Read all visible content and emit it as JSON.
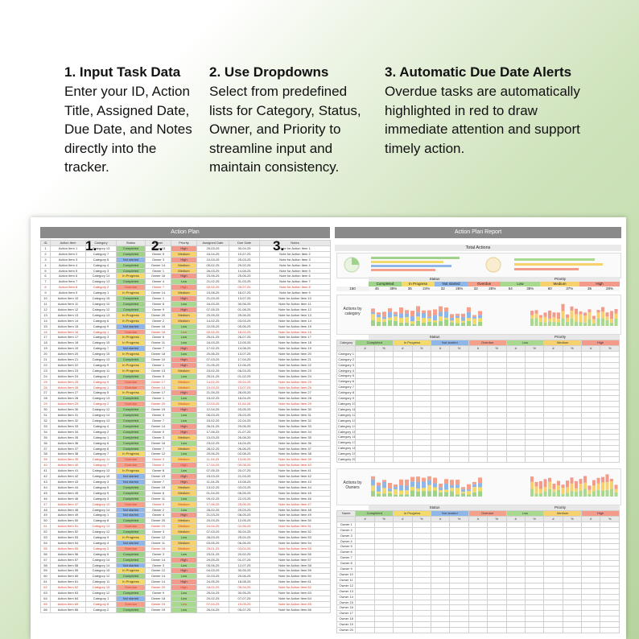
{
  "steps": [
    {
      "title": "1. Input Task Data",
      "body": "Enter your ID, Action Title, Assigned Date, Due Date, and Notes directly into the tracker."
    },
    {
      "title": "2. Use Dropdowns",
      "body": "Select from predefined lists for Category, Status, Owner, and Priority to streamline input and maintain consistency."
    },
    {
      "title": "3. Automatic Due Date Alerts",
      "body": "Overdue tasks are automatically highlighted in red to draw immediate attention and support timely action."
    }
  ],
  "markers": [
    "1.",
    "2.",
    "3."
  ],
  "action_plan": {
    "title": "Action Plan",
    "columns": [
      "ID",
      "Action Item",
      "Category",
      "Status",
      "Owner",
      "Priority",
      "Assigned Date",
      "Due Date",
      "Notes"
    ],
    "rows": [
      [
        "1",
        "Action Item 1",
        "Category 13",
        "Completed",
        "Owner 15",
        "High",
        "25-03-25",
        "30-04-25",
        "Note for Action Item 1"
      ],
      [
        "2",
        "Action Item 2",
        "Category 7",
        "Completed",
        "Owner 5",
        "Medium",
        "16-04-25",
        "10-07-25",
        "Note for Action Item 2"
      ],
      [
        "3",
        "Action Item 3",
        "Category 5",
        "Not started",
        "Owner 3",
        "High",
        "10-03-25",
        "25-03-25",
        "Note for Action Item 3"
      ],
      [
        "4",
        "Action Item 4",
        "Category 4",
        "Completed",
        "Owner 14",
        "Medium",
        "05-02-25",
        "29-02-25",
        "Note for Action Item 4"
      ],
      [
        "5",
        "Action Item 5",
        "Category 3",
        "Completed",
        "Owner 1",
        "Medium",
        "26-03-25",
        "14-08-25",
        "Note for Action Item 5"
      ],
      [
        "6",
        "Action Item 6",
        "Category 14",
        "In Progress",
        "Owner 16",
        "High",
        "15-06-25",
        "25-06-25",
        "Note for Action Item 6"
      ],
      [
        "7",
        "Action Item 7",
        "Category 13",
        "Completed",
        "Owner 4",
        "Low",
        "21-02-25",
        "31-03-25",
        "Note for Action Item 7"
      ],
      [
        "8",
        "Action Item 8",
        "Category 2",
        "Overdue",
        "Owner 7",
        "High",
        "02-02-25",
        "09-07-25",
        "Note for Action Item 8"
      ],
      [
        "9",
        "Action Item 9",
        "Category 1",
        "In Progress",
        "Owner 14",
        "Medium",
        "19-08-25",
        "16-07-25",
        "Note for Action Item 9"
      ],
      [
        "10",
        "Action Item 10",
        "Category 15",
        "Completed",
        "Owner 1",
        "High",
        "21-03-25",
        "13-07-25",
        "Note for Action Item 10"
      ],
      [
        "11",
        "Action Item 11",
        "Category 10",
        "Completed",
        "Owner 8",
        "Low",
        "16-03-25",
        "30-06-25",
        "Note for Action Item 11"
      ],
      [
        "12",
        "Action Item 12",
        "Category 12",
        "Completed",
        "Owner 9",
        "High",
        "07-05-25",
        "01-08-25",
        "Note for Action Item 12"
      ],
      [
        "13",
        "Action Item 13",
        "Category 13",
        "In Progress",
        "Owner 20",
        "Medium",
        "20-05-25",
        "25-06-25",
        "Note for Action Item 13"
      ],
      [
        "14",
        "Action Item 14",
        "Category 6",
        "In Progress",
        "Owner 2",
        "Medium",
        "14-02-25",
        "03-03-25",
        "Note for Action Item 14"
      ],
      [
        "15",
        "Action Item 15",
        "Category 9",
        "Not started",
        "Owner 16",
        "Low",
        "22-05-25",
        "05-06-25",
        "Note for Action Item 15"
      ],
      [
        "16",
        "Action Item 16",
        "Category 1",
        "Overdue",
        "Owner 18",
        "Low",
        "02-02-25",
        "18-02-25",
        "Note for Action Item 16"
      ],
      [
        "17",
        "Action Item 17",
        "Category 3",
        "In Progress",
        "Owner 6",
        "Low",
        "25-01-25",
        "26-07-25",
        "Note for Action Item 17"
      ],
      [
        "18",
        "Action Item 18",
        "Category 15",
        "In Progress",
        "Owner 11",
        "Low",
        "16-03-25",
        "12-05-25",
        "Note for Action Item 18"
      ],
      [
        "19",
        "Action Item 19",
        "Category 7",
        "Not started",
        "Owner 7",
        "High",
        "17-02-25",
        "14-08-25",
        "Note for Action Item 19"
      ],
      [
        "20",
        "Action Item 20",
        "Category 15",
        "In Progress",
        "Owner 18",
        "Low",
        "20-06-25",
        "13-07-25",
        "Note for Action Item 20"
      ],
      [
        "21",
        "Action Item 21",
        "Category 13",
        "Completed",
        "Owner 10",
        "High",
        "07-03-25",
        "17-04-25",
        "Note for Action Item 21"
      ],
      [
        "22",
        "Action Item 22",
        "Category 9",
        "In Progress",
        "Owner 1",
        "High",
        "21-05-25",
        "12-06-25",
        "Note for Action Item 22"
      ],
      [
        "23",
        "Action Item 23",
        "Category 11",
        "In Progress",
        "Owner 13",
        "Medium",
        "23-02-25",
        "06-03-25",
        "Note for Action Item 23"
      ],
      [
        "24",
        "Action Item 24",
        "Category 2",
        "Completed",
        "Owner 5",
        "Low",
        "25-01-25",
        "01-02-25",
        "Note for Action Item 24"
      ],
      [
        "25",
        "Action Item 25",
        "Category 9",
        "Overdue",
        "Owner 17",
        "Medium",
        "14-02-25",
        "20-04-25",
        "Note for Action Item 25"
      ],
      [
        "26",
        "Action Item 26",
        "Category 1",
        "Overdue",
        "Owner 14",
        "Medium",
        "10-03-25",
        "13-07-25",
        "Note for Action Item 26"
      ],
      [
        "27",
        "Action Item 27",
        "Category 5",
        "In Progress",
        "Owner 17",
        "High",
        "21-05-25",
        "26-05-25",
        "Note for Action Item 27"
      ],
      [
        "28",
        "Action Item 28",
        "Category 13",
        "Completed",
        "Owner 1",
        "Low",
        "15-02-25",
        "16-04-25",
        "Note for Action Item 28"
      ],
      [
        "29",
        "Action Item 29",
        "Category 2",
        "Overdue",
        "Owner 20",
        "Medium",
        "12-03-25",
        "11-04-25",
        "Note for Action Item 29"
      ],
      [
        "30",
        "Action Item 30",
        "Category 12",
        "Completed",
        "Owner 15",
        "High",
        "12-04-25",
        "20-05-25",
        "Note for Action Item 30"
      ],
      [
        "31",
        "Action Item 31",
        "Category 14",
        "Completed",
        "Owner 3",
        "Low",
        "06-03-25",
        "25-03-25",
        "Note for Action Item 31"
      ],
      [
        "32",
        "Action Item 32",
        "Category 13",
        "Completed",
        "Owner 7",
        "Low",
        "15-02-25",
        "22-04-25",
        "Note for Action Item 32"
      ],
      [
        "33",
        "Action Item 33",
        "Category 4",
        "Completed",
        "Owner 14",
        "High",
        "26-01-25",
        "29-06-25",
        "Note for Action Item 33"
      ],
      [
        "34",
        "Action Item 34",
        "Category 2",
        "Completed",
        "Owner 0",
        "High",
        "17-06-25",
        "21-07-25",
        "Note for Action Item 34"
      ],
      [
        "35",
        "Action Item 35",
        "Category 1",
        "Completed",
        "Owner 3",
        "Medium",
        "13-03-25",
        "26-08-25",
        "Note for Action Item 35"
      ],
      [
        "36",
        "Action Item 36",
        "Category 6",
        "Completed",
        "Owner 16",
        "Low",
        "23-02-25",
        "16-04-25",
        "Note for Action Item 36"
      ],
      [
        "37",
        "Action Item 37",
        "Category 8",
        "Completed",
        "Owner 7",
        "Medium",
        "28-02-25",
        "06-06-25",
        "Note for Action Item 37"
      ],
      [
        "38",
        "Action Item 38",
        "Category 7",
        "In Progress",
        "Owner 12",
        "Low",
        "20-06-25",
        "02-08-25",
        "Note for Action Item 38"
      ],
      [
        "39",
        "Action Item 39",
        "Category 11",
        "Overdue",
        "Owner 3",
        "Medium",
        "11-04-25",
        "13-06-25",
        "Note for Action Item 39"
      ],
      [
        "40",
        "Action Item 40",
        "Category 7",
        "Overdue",
        "Owner 2",
        "High",
        "17-04-25",
        "09-08-25",
        "Note for Action Item 40"
      ],
      [
        "41",
        "Action Item 41",
        "Category 13",
        "In Progress",
        "Owner 8",
        "Low",
        "07-05-25",
        "20-07-25",
        "Note for Action Item 41"
      ],
      [
        "42",
        "Action Item 42",
        "Category 15",
        "Not started",
        "Owner 19",
        "High",
        "15-03-25",
        "21-03-25",
        "Note for Action Item 42"
      ],
      [
        "43",
        "Action Item 43",
        "Category 3",
        "Not started",
        "Owner 7",
        "High",
        "11-04-25",
        "10-08-25",
        "Note for Action Item 43"
      ],
      [
        "44",
        "Action Item 44",
        "Category 5",
        "Completed",
        "Owner 19",
        "Medium",
        "13-02-25",
        "03-03-25",
        "Note for Action Item 44"
      ],
      [
        "45",
        "Action Item 45",
        "Category 9",
        "Completed",
        "Owner 8",
        "Medium",
        "01-04-25",
        "06-05-25",
        "Note for Action Item 45"
      ],
      [
        "46",
        "Action Item 46",
        "Category 3",
        "Completed",
        "Owner 11",
        "Low",
        "09-02-25",
        "22-03-25",
        "Note for Action Item 46"
      ],
      [
        "47",
        "Action Item 47",
        "Category 10",
        "Overdue",
        "Owner 9",
        "Medium",
        "17-06-25",
        "25-06-25",
        "Note for Action Item 47"
      ],
      [
        "48",
        "Action Item 48",
        "Category 14",
        "Not started",
        "Owner 2",
        "Low",
        "28-02-25",
        "29-03-25",
        "Note for Action Item 48"
      ],
      [
        "49",
        "Action Item 49",
        "Category 1",
        "Not started",
        "Owner 4",
        "High",
        "21-03-25",
        "08-05-25",
        "Note for Action Item 49"
      ],
      [
        "50",
        "Action Item 50",
        "Category 8",
        "Completed",
        "Owner 20",
        "Medium",
        "20-03-25",
        "12-05-25",
        "Note for Action Item 50"
      ],
      [
        "51",
        "Action Item 51",
        "Category 13",
        "Overdue",
        "Owner 10",
        "Medium",
        "24-04-25",
        "02-06-25",
        "Note for Action Item 51"
      ],
      [
        "52",
        "Action Item 52",
        "Category 12",
        "Completed",
        "Owner 3",
        "Medium",
        "07-03-25",
        "30-04-25",
        "Note for Action Item 52"
      ],
      [
        "53",
        "Action Item 53",
        "Category 9",
        "In Progress",
        "Owner 12",
        "Low",
        "28-03-25",
        "25-04-25",
        "Note for Action Item 53"
      ],
      [
        "54",
        "Action Item 54",
        "Category 4",
        "Not started",
        "Owner 11",
        "Medium",
        "03-05-25",
        "06-06-25",
        "Note for Action Item 54"
      ],
      [
        "55",
        "Action Item 55",
        "Category 3",
        "Overdue",
        "Owner 16",
        "Medium",
        "25-01-25",
        "03-04-25",
        "Note for Action Item 55"
      ],
      [
        "56",
        "Action Item 56",
        "Category 5",
        "Completed",
        "Owner 3",
        "Low",
        "23-01-25",
        "20-02-25",
        "Note for Action Item 56"
      ],
      [
        "57",
        "Action Item 57",
        "Category 14",
        "Completed",
        "Owner 14",
        "High",
        "29-05-25",
        "01-07-25",
        "Note for Action Item 57"
      ],
      [
        "58",
        "Action Item 58",
        "Category 14",
        "Not started",
        "Owner 3",
        "Low",
        "05-06-25",
        "12-07-25",
        "Note for Action Item 58"
      ],
      [
        "59",
        "Action Item 59",
        "Category 15",
        "In Progress",
        "Owner 12",
        "High",
        "04-03-25",
        "30-05-25",
        "Note for Action Item 59"
      ],
      [
        "60",
        "Action Item 60",
        "Category 12",
        "Completed",
        "Owner 14",
        "Low",
        "22-03-25",
        "20-06-25",
        "Note for Action Item 60"
      ],
      [
        "61",
        "Action Item 61",
        "Category 11",
        "In Progress",
        "Owner 14",
        "High",
        "24-05-25",
        "18-08-25",
        "Note for Action Item 61"
      ],
      [
        "62",
        "Action Item 62",
        "Category 15",
        "Overdue",
        "Owner 20",
        "High",
        "18-02-25",
        "05-04-25",
        "Note for Action Item 62"
      ],
      [
        "63",
        "Action Item 63",
        "Category 12",
        "Completed",
        "Owner 9",
        "Low",
        "25-04-25",
        "30-05-25",
        "Note for Action Item 63"
      ],
      [
        "64",
        "Action Item 64",
        "Category 1",
        "Not started",
        "Owner 18",
        "Low",
        "20-02-25",
        "07-07-25",
        "Note for Action Item 64"
      ],
      [
        "65",
        "Action Item 65",
        "Category 8",
        "Overdue",
        "Owner 15",
        "Low",
        "07-04-25",
        "19-05-25",
        "Note for Action Item 65"
      ],
      [
        "66",
        "Action Item 66",
        "Category 2",
        "Completed",
        "Owner 19",
        "Low",
        "26-04-25",
        "05-07-25",
        "Note for Action Item 66"
      ]
    ]
  },
  "report": {
    "title": "Action Plan Report",
    "total_actions_label": "Total Actions",
    "total_actions_value": "150",
    "status_label": "Status",
    "priority_label": "Priority",
    "status_headers": [
      "Completed",
      "In Progress",
      "Not started",
      "Overdue"
    ],
    "priority_headers": [
      "Low",
      "Medium",
      "High"
    ],
    "summary_values": [
      "45",
      "39%",
      "36",
      "24%",
      "32",
      "26%",
      "32",
      "28%",
      "54",
      "38%",
      "60",
      "37%",
      "36",
      "28%"
    ],
    "by_category_label": "Actions by category",
    "by_owners_label": "Actions by Owners",
    "category_col": "Category",
    "name_col": "Name",
    "count_sym": "#",
    "pct_sym": "%",
    "categories": [
      "Category 1",
      "Category 2",
      "Category 3",
      "Category 4",
      "Category 5",
      "Category 6",
      "Category 7",
      "Category 8",
      "Category 9",
      "Category 10",
      "Category 11",
      "Category 12",
      "Category 13",
      "Category 14",
      "Category 15",
      "Category 16",
      "Category 17",
      "Category 18",
      "Category 19",
      "Category 20"
    ],
    "owners": [
      "Owner 1",
      "Owner 2",
      "Owner 3",
      "Owner 4",
      "Owner 5",
      "Owner 6",
      "Owner 7",
      "Owner 8",
      "Owner 9",
      "Owner 10",
      "Owner 11",
      "Owner 12",
      "Owner 13",
      "Owner 14",
      "Owner 15",
      "Owner 16",
      "Owner 17",
      "Owner 18",
      "Owner 19",
      "Owner 20"
    ]
  },
  "colors": {
    "completed": "#9fd38a",
    "in_progress": "#f4d96b",
    "not_started": "#8fb6e8",
    "overdue": "#f5a08a",
    "high": "#f39a8b",
    "medium": "#f8d16f",
    "low": "#a9d98f"
  }
}
